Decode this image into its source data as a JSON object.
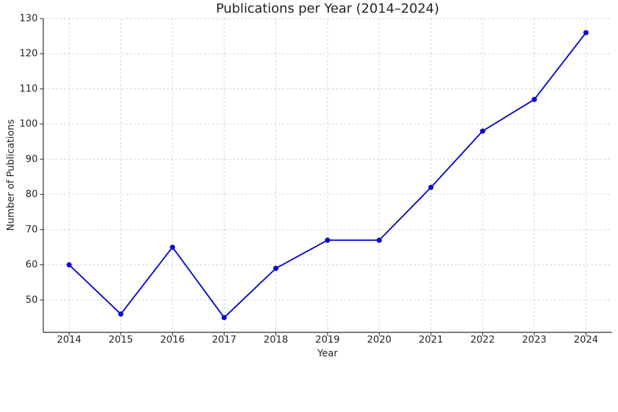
{
  "chart_data": {
    "type": "line",
    "title": "Publications per Year (2014–2024)",
    "x_label": "Year",
    "y_label": "Number of Publications",
    "x": [
      2014,
      2015,
      2016,
      2017,
      2018,
      2019,
      2020,
      2021,
      2022,
      2023,
      2024
    ],
    "series": [
      {
        "name": "Publications",
        "color": "#0a0ad0",
        "values": [
          60,
          46,
          65,
          45,
          59,
          67,
          67,
          82,
          98,
          107,
          126
        ]
      }
    ],
    "xlim": [
      2013.5,
      2024.5
    ],
    "xticks": [
      2014,
      2015,
      2016,
      2017,
      2018,
      2019,
      2020,
      2021,
      2022,
      2023,
      2024
    ],
    "ylim": [
      40.8,
      130
    ],
    "yticks": [
      50,
      60,
      70,
      80,
      90,
      100,
      110,
      120,
      130
    ],
    "grid": true,
    "markers": true
  }
}
